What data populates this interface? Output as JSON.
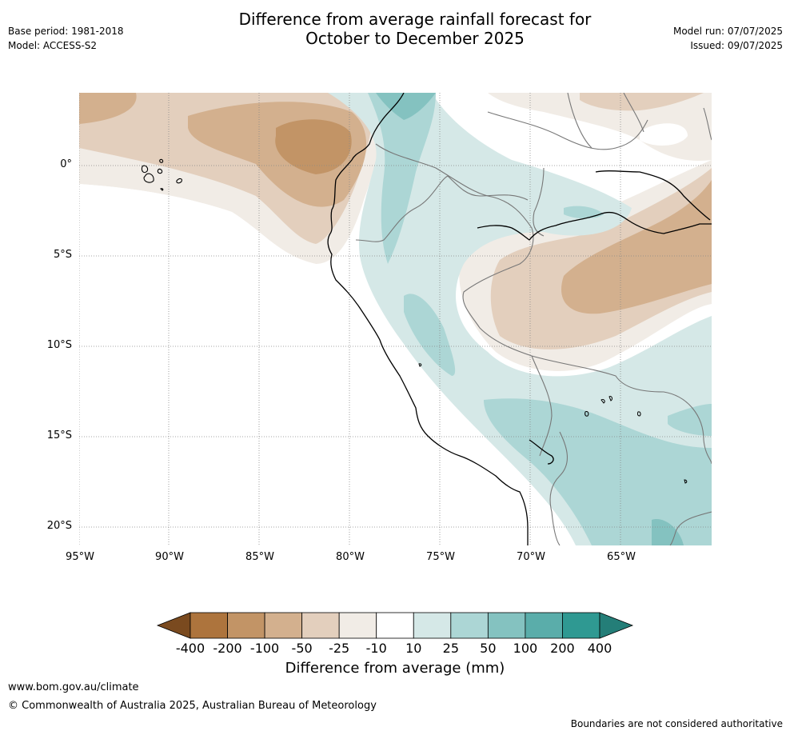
{
  "title": {
    "line1": "Difference from average rainfall forecast for",
    "line2": "October to December 2025"
  },
  "meta_left": {
    "base_period": "Base period: 1981-2018",
    "model": "Model: ACCESS-S2"
  },
  "meta_right": {
    "model_run": "Model run: 07/07/2025",
    "issued": "Issued: 09/07/2025"
  },
  "map": {
    "region": "Peru / north-western South America",
    "lat_ticks": [
      "0°",
      "5°S",
      "10°S",
      "15°S",
      "20°S"
    ],
    "lon_ticks": [
      "95°W",
      "90°W",
      "85°W",
      "80°W",
      "75°W",
      "70°W",
      "65°W"
    ],
    "gridlines": "dotted"
  },
  "colorbar": {
    "title": "Difference from average (mm)",
    "labels": [
      "-400",
      "-200",
      "-100",
      "-50",
      "-25",
      "-10",
      "10",
      "25",
      "50",
      "100",
      "200",
      "400"
    ],
    "colors": [
      "#7a4a1f",
      "#ad743d",
      "#c29466",
      "#d3b08e",
      "#e3cfbd",
      "#f1ece6",
      "#ffffff",
      "#d5e8e7",
      "#acd6d5",
      "#84c2c0",
      "#5aadaa",
      "#2f9992",
      "#247e78"
    ]
  },
  "footer": {
    "url": "www.bom.gov.au/climate",
    "copyright": "© Commonwealth of Australia 2025, Australian Bureau of Meteorology",
    "disclaimer": "Boundaries are not considered authoritative"
  }
}
